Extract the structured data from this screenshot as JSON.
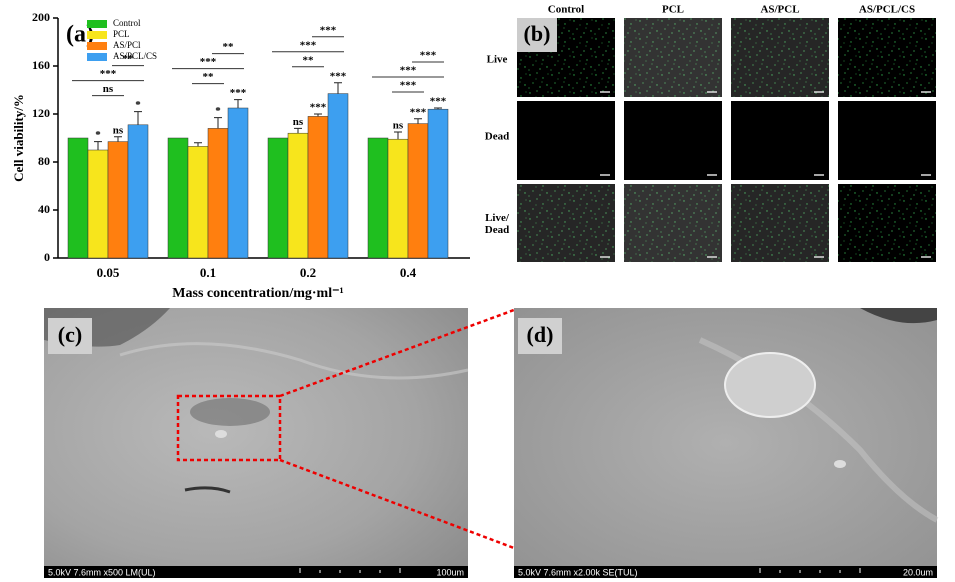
{
  "chart_data": {
    "type": "bar",
    "panel_label": "(a)",
    "ylabel": "Cell viability/%",
    "xlabel": "Mass concentration/mg·ml⁻¹",
    "categories": [
      "0.05",
      "0.1",
      "0.2",
      "0.4"
    ],
    "series": [
      {
        "name": "Control",
        "color": "#1fbf1f",
        "values": [
          100,
          100,
          100,
          100
        ]
      },
      {
        "name": "PCL",
        "color": "#f7e51c",
        "values": [
          90,
          93,
          104,
          99
        ],
        "errors": [
          7,
          3,
          4,
          6
        ],
        "sig_labels": [
          "*",
          null,
          "ns",
          "ns"
        ]
      },
      {
        "name": "AS/PCl",
        "color": "#ff7f0f",
        "values": [
          97,
          108,
          118,
          112
        ],
        "errors": [
          4,
          9,
          2,
          4
        ],
        "sig_labels": [
          "ns",
          "*",
          "***",
          "***"
        ]
      },
      {
        "name": "AS/PCL/CS",
        "color": "#3d9ff0",
        "values": [
          111,
          125,
          137,
          124
        ],
        "errors": [
          11,
          7,
          9,
          1
        ],
        "sig_labels": [
          "*",
          "***",
          "***",
          "***"
        ]
      }
    ],
    "brackets": [
      [
        "ns",
        "***",
        "**"
      ],
      [
        "**",
        "***",
        "**"
      ],
      [
        "**",
        "***",
        "***"
      ],
      [
        "***",
        "***",
        "***"
      ]
    ],
    "ylim": [
      0,
      200
    ],
    "yticks": [
      0,
      40,
      80,
      120,
      160,
      200
    ]
  },
  "panels": {
    "b": {
      "label": "(b)",
      "columns": [
        "Control",
        "PCL",
        "AS/PCL",
        "AS/PCL/CS"
      ],
      "rows": [
        "Live",
        "Dead",
        "Live/ Dead"
      ]
    },
    "c": {
      "label": "(c)",
      "info": "5.0kV 7.6mm x500 LM(UL)",
      "scale": "100um"
    },
    "d": {
      "label": "(d)",
      "info": "5.0kV 7.6mm x2.00k SE(TUL)",
      "scale": "20.0um"
    }
  }
}
